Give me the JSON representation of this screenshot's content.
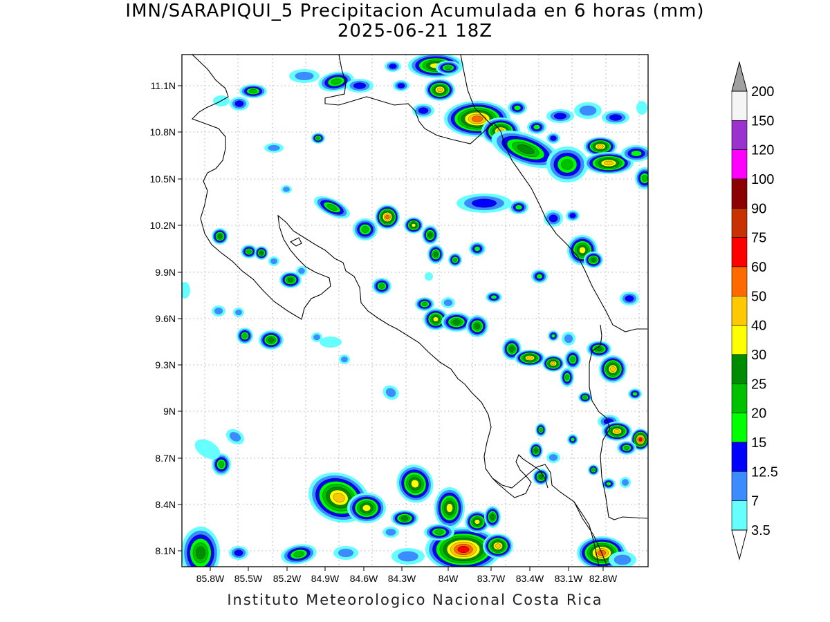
{
  "title": {
    "line1": "IMN/SARAPIQUI_5 Precipitacion Acumulada en 6 horas (mm)",
    "line2": "2025-06-21 18Z"
  },
  "footer": "Instituto Meteorologico Nacional Costa Rica",
  "map": {
    "lat_labels": [
      "11.1N",
      "10.8N",
      "10.5N",
      "10.2N",
      "9.9N",
      "9.6N",
      "9.3N",
      "9N",
      "8.7N",
      "8.4N",
      "8.1N"
    ],
    "lon_labels": [
      "85.8W",
      "85.5W",
      "85.2W",
      "84.9W",
      "84.6W",
      "84.3W",
      "84W",
      "83.7W",
      "83.4W",
      "83.1W",
      "82.8W"
    ],
    "grid": true,
    "land_color": "#ffffff",
    "coastline_color": "#000000"
  },
  "colorbar": {
    "labels": [
      "200",
      "150",
      "120",
      "100",
      "90",
      "75",
      "60",
      "50",
      "40",
      "30",
      "25",
      "20",
      "15",
      "12.5",
      "7",
      "3.5"
    ],
    "colors": [
      "#f5f5f5",
      "#9a32cd",
      "#ff00ff",
      "#8b0000",
      "#c83200",
      "#ff0000",
      "#ff6a00",
      "#ffc800",
      "#ffff00",
      "#008c00",
      "#00c000",
      "#00ff00",
      "#0000ff",
      "#3c8cff",
      "#66ffff"
    ],
    "over_color": "#a0a0a0",
    "under_color": "#ffffff"
  },
  "precip_levels": [
    {
      "threshold": "3.5",
      "color": "#66ffff"
    },
    {
      "threshold": "7",
      "color": "#3c8cff"
    },
    {
      "threshold": "12.5",
      "color": "#0000ff"
    },
    {
      "threshold": "15",
      "color": "#00ff00"
    },
    {
      "threshold": "20",
      "color": "#00c000"
    },
    {
      "threshold": "25",
      "color": "#008c00"
    },
    {
      "threshold": "30",
      "color": "#ffff00"
    },
    {
      "threshold": "40",
      "color": "#ffc800"
    },
    {
      "threshold": "50",
      "color": "#ff6a00"
    },
    {
      "threshold": "60",
      "color": "#ff0000"
    }
  ]
}
